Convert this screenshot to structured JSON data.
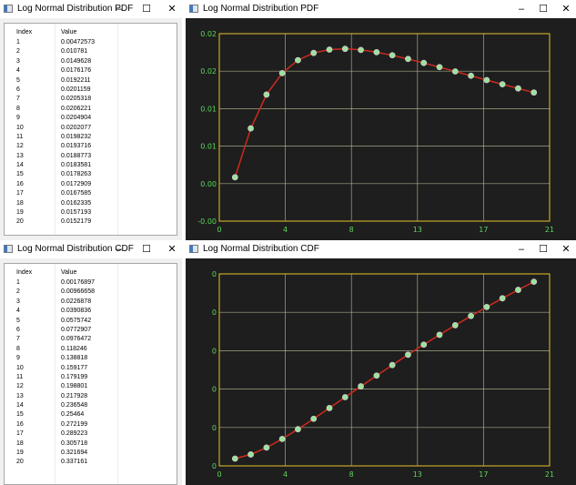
{
  "pdf_table_window": {
    "title": "Log Normal Distribution PDF",
    "controls": {
      "minimize": "–",
      "maximize": "☐",
      "close": "✕"
    },
    "headers": {
      "index": "Index",
      "value": "Value"
    },
    "rows": [
      {
        "index": "1",
        "value": "0.00472573"
      },
      {
        "index": "2",
        "value": "0.010781"
      },
      {
        "index": "3",
        "value": "0.0149628"
      },
      {
        "index": "4",
        "value": "0.0176176"
      },
      {
        "index": "5",
        "value": "0.0192211"
      },
      {
        "index": "6",
        "value": "0.0201159"
      },
      {
        "index": "7",
        "value": "0.0205318"
      },
      {
        "index": "8",
        "value": "0.0206221"
      },
      {
        "index": "9",
        "value": "0.0204904"
      },
      {
        "index": "10",
        "value": "0.0202077"
      },
      {
        "index": "11",
        "value": "0.0198232"
      },
      {
        "index": "12",
        "value": "0.0193716"
      },
      {
        "index": "13",
        "value": "0.0188773"
      },
      {
        "index": "14",
        "value": "0.0183581"
      },
      {
        "index": "15",
        "value": "0.0178263"
      },
      {
        "index": "16",
        "value": "0.0172909"
      },
      {
        "index": "17",
        "value": "0.0167585"
      },
      {
        "index": "18",
        "value": "0.0162335"
      },
      {
        "index": "19",
        "value": "0.0157193"
      },
      {
        "index": "20",
        "value": "0.0152179"
      }
    ]
  },
  "cdf_table_window": {
    "title": "Log Normal Distribution CDF",
    "controls": {
      "minimize": "–",
      "maximize": "☐",
      "close": "✕"
    },
    "headers": {
      "index": "Index",
      "value": "Value"
    },
    "rows": [
      {
        "index": "1",
        "value": "0.00176897"
      },
      {
        "index": "2",
        "value": "0.00966658"
      },
      {
        "index": "3",
        "value": "0.0226878"
      },
      {
        "index": "4",
        "value": "0.0390836"
      },
      {
        "index": "5",
        "value": "0.0575742"
      },
      {
        "index": "6",
        "value": "0.0772907"
      },
      {
        "index": "7",
        "value": "0.0976472"
      },
      {
        "index": "8",
        "value": "0.118246"
      },
      {
        "index": "9",
        "value": "0.138818"
      },
      {
        "index": "10",
        "value": "0.159177"
      },
      {
        "index": "11",
        "value": "0.179199"
      },
      {
        "index": "12",
        "value": "0.198801"
      },
      {
        "index": "13",
        "value": "0.217928"
      },
      {
        "index": "14",
        "value": "0.236548"
      },
      {
        "index": "15",
        "value": "0.25464"
      },
      {
        "index": "16",
        "value": "0.272199"
      },
      {
        "index": "17",
        "value": "0.289223"
      },
      {
        "index": "18",
        "value": "0.305718"
      },
      {
        "index": "19",
        "value": "0.321694"
      },
      {
        "index": "20",
        "value": "0.337161"
      }
    ]
  },
  "pdf_chart_window": {
    "title": "Log Normal Distribution PDF",
    "controls": {
      "minimize": "–",
      "maximize": "☐",
      "close": "✕"
    }
  },
  "cdf_chart_window": {
    "title": "Log Normal Distribution CDF",
    "controls": {
      "minimize": "–",
      "maximize": "☐",
      "close": "✕"
    }
  },
  "colors": {
    "plot_background": "#1e1e1e",
    "frame": "#e6c229",
    "grid": "#c8c8a0",
    "line": "#cc2b1d",
    "marker_fill": "#9be39b",
    "marker_edge": "#c9cfc9",
    "tick_text": "#5cd65c"
  },
  "chart_data": [
    {
      "type": "line",
      "xlim": [
        0,
        21
      ],
      "ylim": [
        -0.0007,
        0.0225
      ],
      "x_ticks": [
        "0",
        "4",
        "8",
        "13",
        "17",
        "21"
      ],
      "y_ticks": [
        "-0.00",
        "0.00",
        "0.01",
        "0.01",
        "0.02",
        "0.02"
      ],
      "grid": true,
      "x": [
        1,
        2,
        3,
        4,
        5,
        6,
        7,
        8,
        9,
        10,
        11,
        12,
        13,
        14,
        15,
        16,
        17,
        18,
        19,
        20
      ],
      "series": [
        {
          "values": [
            0.00472573,
            0.010781,
            0.0149628,
            0.0176176,
            0.0192211,
            0.0201159,
            0.0205318,
            0.0206221,
            0.0204904,
            0.0202077,
            0.0198232,
            0.0193716,
            0.0188773,
            0.0183581,
            0.0178263,
            0.0172909,
            0.0167585,
            0.0162335,
            0.0157193,
            0.0152179
          ]
        }
      ]
    },
    {
      "type": "line",
      "xlim": [
        0,
        21
      ],
      "ylim": [
        -0.012,
        0.352
      ],
      "x_ticks": [
        "0",
        "4",
        "8",
        "13",
        "17",
        "21"
      ],
      "y_ticks": [
        "0",
        "0",
        "0",
        "0",
        "0",
        "0"
      ],
      "grid": true,
      "x": [
        1,
        2,
        3,
        4,
        5,
        6,
        7,
        8,
        9,
        10,
        11,
        12,
        13,
        14,
        15,
        16,
        17,
        18,
        19,
        20
      ],
      "series": [
        {
          "values": [
            0.00176897,
            0.00966658,
            0.0226878,
            0.0390836,
            0.0575742,
            0.0772907,
            0.0976472,
            0.118246,
            0.138818,
            0.159177,
            0.179199,
            0.198801,
            0.217928,
            0.236548,
            0.25464,
            0.272199,
            0.289223,
            0.305718,
            0.321694,
            0.337161
          ]
        }
      ]
    }
  ]
}
